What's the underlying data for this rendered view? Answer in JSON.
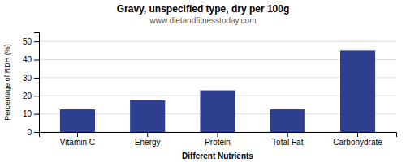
{
  "chart_data": {
    "type": "bar",
    "title": "Gravy, unspecified type, dry per 100g",
    "subtitle": "www.dietandfitnesstoday.com",
    "xlabel": "Different Nutrients",
    "ylabel": "Percentage of RDH (%)",
    "categories": [
      "Vitamin C",
      "Energy",
      "Protein",
      "Total Fat",
      "Carbohydrate"
    ],
    "values": [
      12.5,
      17.5,
      23,
      12.5,
      45
    ],
    "color": "#2E3F8F",
    "ylim": [
      0,
      55
    ],
    "yticks": [
      0,
      10,
      20,
      30,
      40,
      50
    ],
    "grid": true
  }
}
